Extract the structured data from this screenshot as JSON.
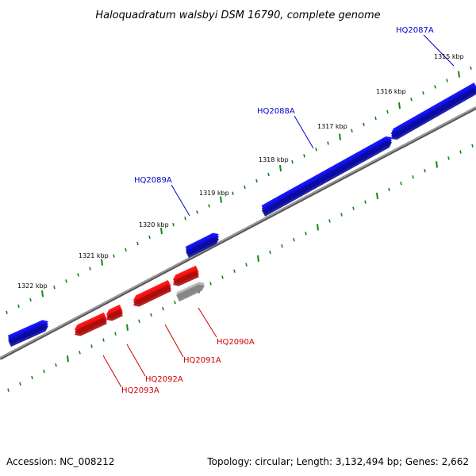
{
  "title": "Haloquadratum walsbyi DSM 16790, complete genome",
  "footer": {
    "accession": "Accession: NC_008212",
    "summary": "Topology: circular; Length: 3,132,494 bp; Genes: 2,662"
  },
  "colors": {
    "forward_strand": "#1010dd",
    "reverse_strand": "#ee1111",
    "other_feature": "#b8b8b8",
    "backbone": "#888888",
    "ticks": "#118811",
    "forward_label": "#0000cc",
    "reverse_label": "#cc0000"
  },
  "kbp_ticks": [
    "1315 kbp",
    "1316 kbp",
    "1317 kbp",
    "1318 kbp",
    "1319 kbp",
    "1320 kbp",
    "1321 kbp",
    "1322 kbp"
  ],
  "gene_labels": {
    "forward": [
      "HQ2087A",
      "HQ2088A",
      "HQ2089A"
    ],
    "reverse": [
      "HQ2090A",
      "HQ2091A",
      "HQ2092A",
      "HQ2093A"
    ]
  }
}
